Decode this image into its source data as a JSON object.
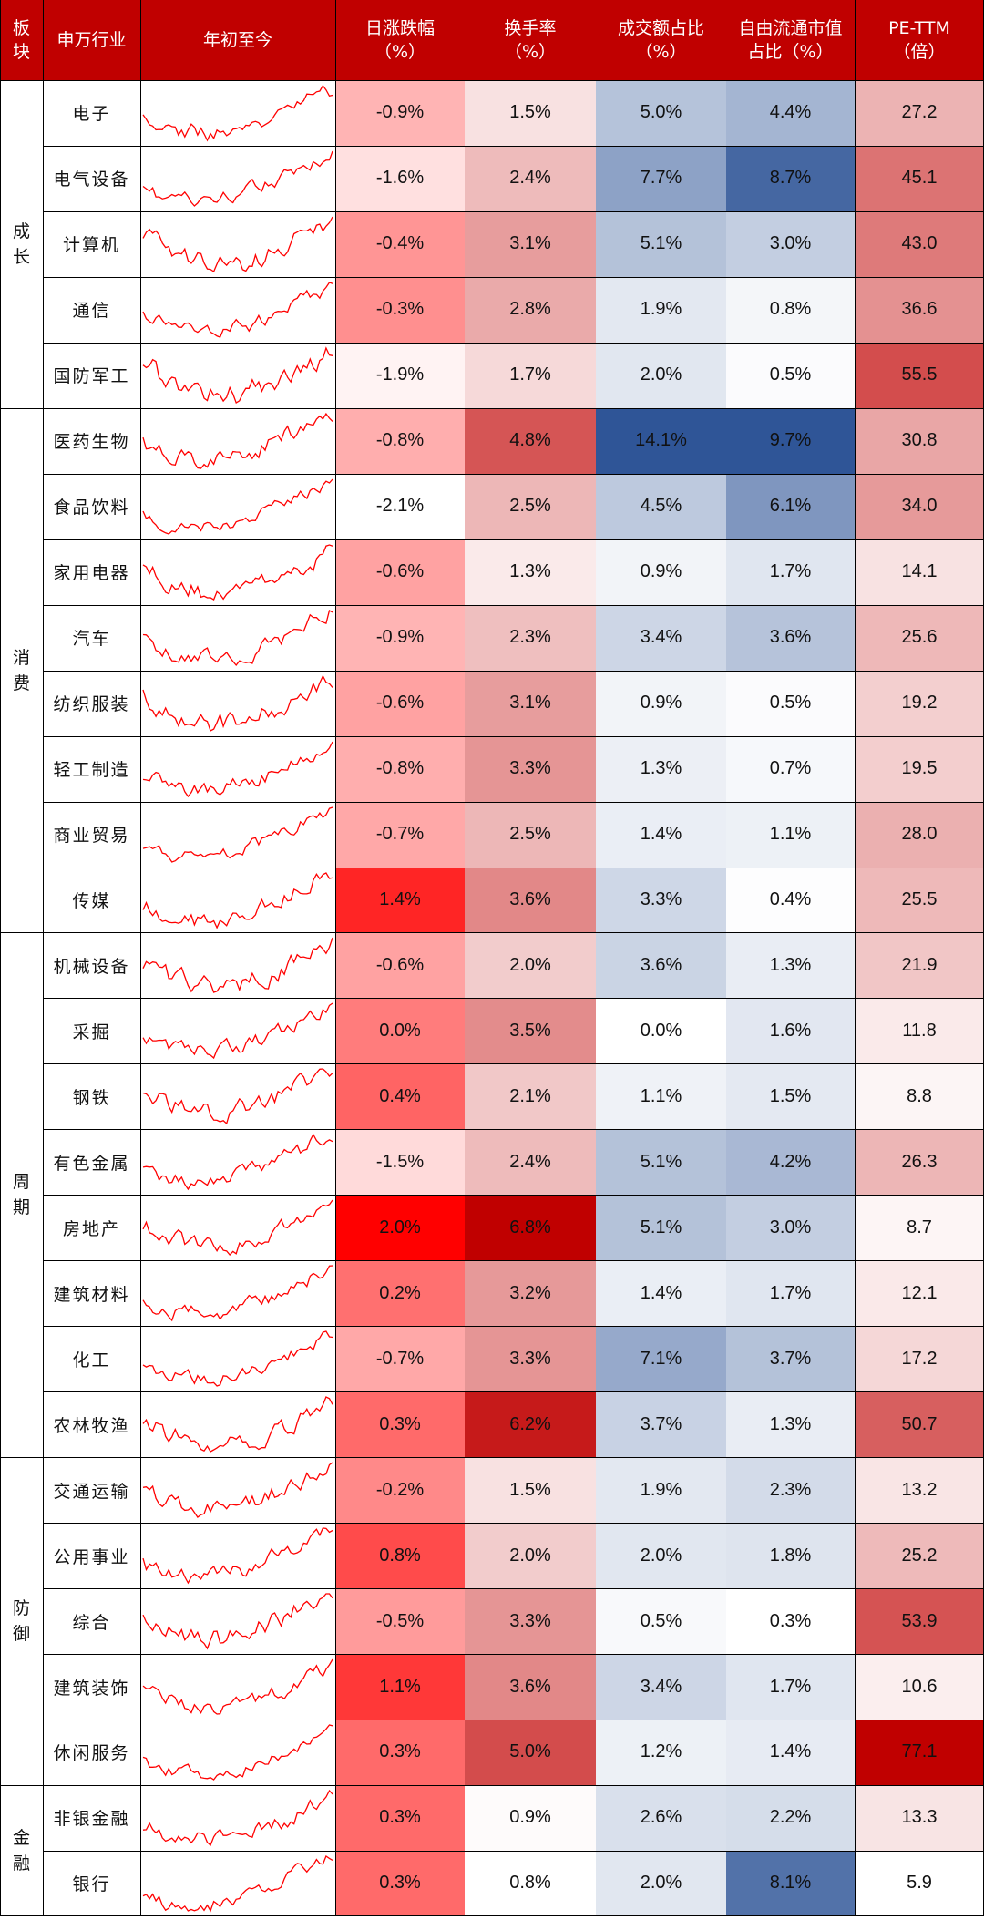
{
  "header": {
    "block": "板\n块",
    "industry": "申万行业",
    "ytd": "年初至今",
    "daily_change": "日涨跌幅\n（%）",
    "turnover": "换手率\n（%）",
    "volume_share": "成交额占比\n（%）",
    "float_cap_share": "自由流通市值\n占比（%）",
    "pe_ttm": "PE-TTM\n（倍）"
  },
  "colors": {
    "header_bg": "#c00000",
    "sparkline": "#ff0000",
    "red_scale": [
      "#ffffff",
      "#ff0000"
    ],
    "turnover_scale": [
      "#ffffff",
      "#c00000"
    ],
    "blue_scale": [
      "#ffffff",
      "#2f5597"
    ]
  },
  "chart_data": {
    "type": "table",
    "columns": [
      "板块",
      "申万行业",
      "年初至今",
      "日涨跌幅（%）",
      "换手率（%）",
      "成交额占比（%）",
      "自由流通市值占比（%）",
      "PE-TTM（倍）"
    ],
    "groups": [
      {
        "name": "成\n长",
        "rows": [
          {
            "industry": "电子",
            "daily_change": "-0.9%",
            "turnover": "1.5%",
            "volume_share": "5.0%",
            "float_cap_share": "4.4%",
            "pe_ttm": "27.2"
          },
          {
            "industry": "电气设备",
            "daily_change": "-1.6%",
            "turnover": "2.4%",
            "volume_share": "7.7%",
            "float_cap_share": "8.7%",
            "pe_ttm": "45.1"
          },
          {
            "industry": "计算机",
            "daily_change": "-0.4%",
            "turnover": "3.1%",
            "volume_share": "5.1%",
            "float_cap_share": "3.0%",
            "pe_ttm": "43.0"
          },
          {
            "industry": "通信",
            "daily_change": "-0.3%",
            "turnover": "2.8%",
            "volume_share": "1.9%",
            "float_cap_share": "0.8%",
            "pe_ttm": "36.6"
          },
          {
            "industry": "国防军工",
            "daily_change": "-1.9%",
            "turnover": "1.7%",
            "volume_share": "2.0%",
            "float_cap_share": "0.5%",
            "pe_ttm": "55.5"
          }
        ]
      },
      {
        "name": "消\n费",
        "rows": [
          {
            "industry": "医药生物",
            "daily_change": "-0.8%",
            "turnover": "4.8%",
            "volume_share": "14.1%",
            "float_cap_share": "9.7%",
            "pe_ttm": "30.8"
          },
          {
            "industry": "食品饮料",
            "daily_change": "-2.1%",
            "turnover": "2.5%",
            "volume_share": "4.5%",
            "float_cap_share": "6.1%",
            "pe_ttm": "34.0"
          },
          {
            "industry": "家用电器",
            "daily_change": "-0.6%",
            "turnover": "1.3%",
            "volume_share": "0.9%",
            "float_cap_share": "1.7%",
            "pe_ttm": "14.1"
          },
          {
            "industry": "汽车",
            "daily_change": "-0.9%",
            "turnover": "2.3%",
            "volume_share": "3.4%",
            "float_cap_share": "3.6%",
            "pe_ttm": "25.6"
          },
          {
            "industry": "纺织服装",
            "daily_change": "-0.6%",
            "turnover": "3.1%",
            "volume_share": "0.9%",
            "float_cap_share": "0.5%",
            "pe_ttm": "19.2"
          },
          {
            "industry": "轻工制造",
            "daily_change": "-0.8%",
            "turnover": "3.3%",
            "volume_share": "1.3%",
            "float_cap_share": "0.7%",
            "pe_ttm": "19.5"
          },
          {
            "industry": "商业贸易",
            "daily_change": "-0.7%",
            "turnover": "2.5%",
            "volume_share": "1.4%",
            "float_cap_share": "1.1%",
            "pe_ttm": "28.0"
          },
          {
            "industry": "传媒",
            "daily_change": "1.4%",
            "turnover": "3.6%",
            "volume_share": "3.3%",
            "float_cap_share": "0.4%",
            "pe_ttm": "25.5"
          }
        ]
      },
      {
        "name": "周\n期",
        "rows": [
          {
            "industry": "机械设备",
            "daily_change": "-0.6%",
            "turnover": "2.0%",
            "volume_share": "3.6%",
            "float_cap_share": "1.3%",
            "pe_ttm": "21.9"
          },
          {
            "industry": "采掘",
            "daily_change": "0.0%",
            "turnover": "3.5%",
            "volume_share": "0.0%",
            "float_cap_share": "1.6%",
            "pe_ttm": "11.8"
          },
          {
            "industry": "钢铁",
            "daily_change": "0.4%",
            "turnover": "2.1%",
            "volume_share": "1.1%",
            "float_cap_share": "1.5%",
            "pe_ttm": "8.8"
          },
          {
            "industry": "有色金属",
            "daily_change": "-1.5%",
            "turnover": "2.4%",
            "volume_share": "5.1%",
            "float_cap_share": "4.2%",
            "pe_ttm": "26.3"
          },
          {
            "industry": "房地产",
            "daily_change": "2.0%",
            "turnover": "6.8%",
            "volume_share": "5.1%",
            "float_cap_share": "3.0%",
            "pe_ttm": "8.7"
          },
          {
            "industry": "建筑材料",
            "daily_change": "0.2%",
            "turnover": "3.2%",
            "volume_share": "1.4%",
            "float_cap_share": "1.7%",
            "pe_ttm": "12.1"
          },
          {
            "industry": "化工",
            "daily_change": "-0.7%",
            "turnover": "3.3%",
            "volume_share": "7.1%",
            "float_cap_share": "3.7%",
            "pe_ttm": "17.2"
          },
          {
            "industry": "农林牧渔",
            "daily_change": "0.3%",
            "turnover": "6.2%",
            "volume_share": "3.7%",
            "float_cap_share": "1.3%",
            "pe_ttm": "50.7"
          }
        ]
      },
      {
        "name": "防\n御",
        "rows": [
          {
            "industry": "交通运输",
            "daily_change": "-0.2%",
            "turnover": "1.5%",
            "volume_share": "1.9%",
            "float_cap_share": "2.3%",
            "pe_ttm": "13.2"
          },
          {
            "industry": "公用事业",
            "daily_change": "0.8%",
            "turnover": "2.0%",
            "volume_share": "2.0%",
            "float_cap_share": "1.8%",
            "pe_ttm": "25.2"
          },
          {
            "industry": "综合",
            "daily_change": "-0.5%",
            "turnover": "3.3%",
            "volume_share": "0.5%",
            "float_cap_share": "0.3%",
            "pe_ttm": "53.9"
          },
          {
            "industry": "建筑装饰",
            "daily_change": "1.1%",
            "turnover": "3.6%",
            "volume_share": "3.4%",
            "float_cap_share": "1.7%",
            "pe_ttm": "10.6"
          },
          {
            "industry": "休闲服务",
            "daily_change": "0.3%",
            "turnover": "5.0%",
            "volume_share": "1.2%",
            "float_cap_share": "1.4%",
            "pe_ttm": "77.1"
          }
        ]
      },
      {
        "name": "金\n融",
        "rows": [
          {
            "industry": "非银金融",
            "daily_change": "0.3%",
            "turnover": "0.9%",
            "volume_share": "2.6%",
            "float_cap_share": "2.2%",
            "pe_ttm": "13.3"
          },
          {
            "industry": "银行",
            "daily_change": "0.3%",
            "turnover": "0.8%",
            "volume_share": "2.0%",
            "float_cap_share": "8.1%",
            "pe_ttm": "5.9"
          }
        ]
      }
    ],
    "color_scales": {
      "daily_change": [
        -2.1,
        2.0
      ],
      "turnover": [
        0.8,
        6.8
      ],
      "volume_share": [
        0.0,
        14.1
      ],
      "float_cap_share": [
        0.3,
        9.7
      ],
      "pe_ttm": [
        5.9,
        77.1
      ]
    }
  }
}
